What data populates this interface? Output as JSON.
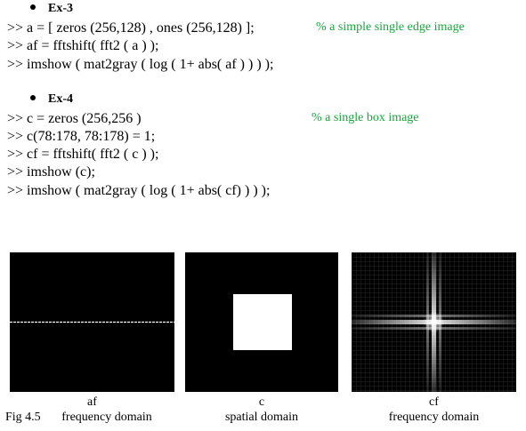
{
  "ex3": {
    "heading": "Ex-3",
    "lines": [
      ">> a = [ zeros (256,128) , ones (256,128) ];",
      ">> af = fftshift( fft2 ( a ) );",
      ">> imshow ( mat2gray ( log ( 1+ abs( af ) ) ) );"
    ],
    "comment": "% a simple single edge image"
  },
  "ex4": {
    "heading": "Ex-4",
    "lines": [
      ">> c = zeros (256,256 )",
      ">> c(78:178, 78:178) = 1;",
      ">> cf = fftshift( fft2 ( c ) );",
      ">> imshow (c);",
      ">> imshow ( mat2gray ( log ( 1+ abs( cf) ) ) );"
    ],
    "comment": "% a single box image"
  },
  "figure": {
    "panels": [
      {
        "label": "af",
        "domain": "frequency domain"
      },
      {
        "label": "c",
        "domain": "spatial domain"
      },
      {
        "label": "cf",
        "domain": "frequency domain"
      }
    ],
    "fig_label": "Fig 4.5"
  },
  "colors": {
    "comment": "#1aa53e",
    "panel_bg": "#000000",
    "box": "#ffffff"
  }
}
